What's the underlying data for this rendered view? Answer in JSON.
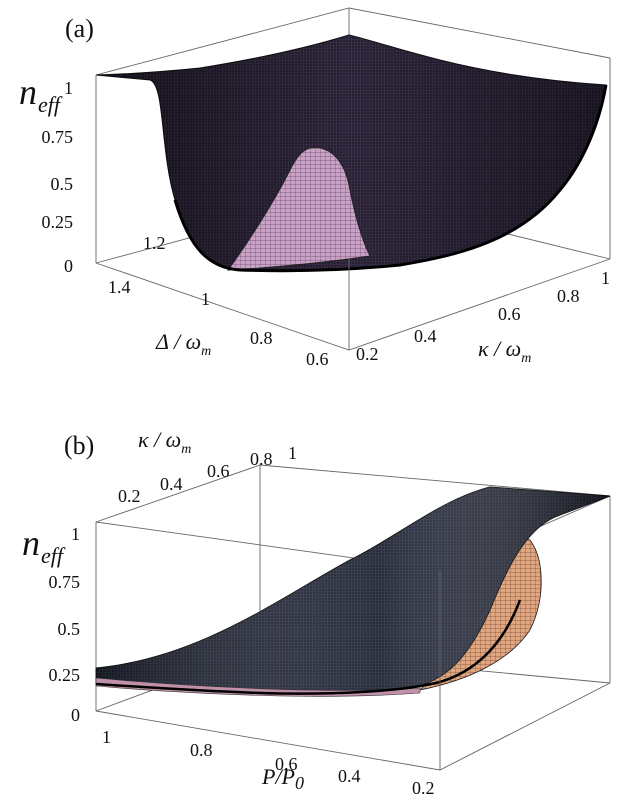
{
  "colors": {
    "surface_dark": "#1c1c2a",
    "surface_mesh_a": "#3a2f48",
    "surface_mesh_b": "#4a3f5c",
    "surface_pink": "#c9a2c7",
    "surface_orange": "#d9a07a",
    "box": "#666666"
  },
  "chart_data": [
    {
      "panel_label": "(a)",
      "type": "surface3d",
      "z_label": "n_eff",
      "z_label_main": "n",
      "z_label_sub": "eff",
      "x_label_main": "Δ / ω",
      "x_label_sub": "m",
      "y_label_main": "κ / ω",
      "y_label_sub": "m",
      "z_ticks": [
        "1",
        "0.75",
        "0.5",
        "0.25",
        "0"
      ],
      "x_ticks": [
        "1.4",
        "1.2",
        "1",
        "0.8",
        "0.6"
      ],
      "y_ticks": [
        "0.2",
        "0.4",
        "0.6",
        "0.8",
        "1"
      ],
      "zlim": [
        0,
        1
      ],
      "xlim": [
        0.6,
        1.4
      ],
      "ylim": [
        0.2,
        1.0
      ]
    },
    {
      "panel_label": "(b)",
      "type": "surface3d",
      "z_label": "n_eff",
      "z_label_main": "n",
      "z_label_sub": "eff",
      "x_label_main": "P/P",
      "x_label_sub": "0",
      "y_label_main": "κ / ω",
      "y_label_sub": "m",
      "z_ticks": [
        "1",
        "0.75",
        "0.5",
        "0.25",
        "0"
      ],
      "x_ticks": [
        "1",
        "0.8",
        "0.6",
        "0.4",
        "0.2"
      ],
      "y_ticks": [
        "0.2",
        "0.4",
        "0.6",
        "0.8",
        "1"
      ],
      "zlim": [
        0,
        1
      ],
      "xlim": [
        0.2,
        1.0
      ],
      "ylim": [
        0.2,
        1.0
      ]
    }
  ]
}
